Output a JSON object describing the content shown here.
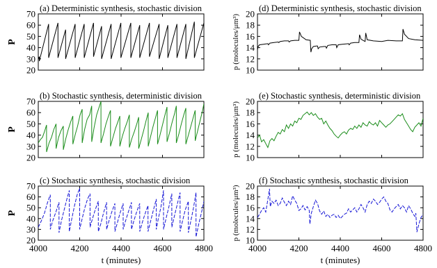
{
  "chart_data": [
    {
      "panel": "a",
      "type": "line",
      "title": "(a) Deterministic synthesis, stochastic division",
      "ylabel": "P",
      "xlim": [
        4000,
        4800
      ],
      "ylim": [
        20,
        70
      ],
      "yticks": [
        20,
        30,
        40,
        50,
        60,
        70
      ],
      "xticks": [
        4000,
        4200,
        4400,
        4600,
        4800
      ],
      "show_xtick_labels": false,
      "series": [
        {
          "color": "#000000",
          "dash": "solid",
          "x": [
            4000,
            4005,
            4005,
            4050,
            4050,
            4095,
            4095,
            4132,
            4132,
            4178,
            4178,
            4222,
            4222,
            4267,
            4267,
            4306,
            4306,
            4352,
            4352,
            4399,
            4399,
            4447,
            4447,
            4490,
            4490,
            4537,
            4537,
            4584,
            4584,
            4626,
            4626,
            4670,
            4670,
            4713,
            4713,
            4754,
            4754,
            4800
          ],
          "y": [
            30,
            32,
            28,
            61,
            31,
            62,
            31,
            56,
            30,
            61,
            31,
            61,
            31,
            62,
            32,
            59,
            30,
            61,
            30,
            62,
            31,
            62,
            31,
            60,
            31,
            62,
            32,
            61,
            30,
            60,
            31,
            61,
            31,
            61,
            30,
            63,
            31,
            62
          ]
        }
      ]
    },
    {
      "panel": "b",
      "type": "line",
      "title": "(b) Stochastic synthesis, deterministic division",
      "ylabel": "P",
      "xlim": [
        4000,
        4800
      ],
      "ylim": [
        20,
        70
      ],
      "yticks": [
        20,
        30,
        40,
        50,
        60,
        70
      ],
      "xticks": [
        4000,
        4200,
        4400,
        4600,
        4800
      ],
      "show_xtick_labels": false,
      "series": [
        {
          "color": "#1a8c1a",
          "dash": "solid",
          "x": [
            4000,
            4010,
            4020,
            4030,
            4040,
            4040,
            4052,
            4064,
            4075,
            4086,
            4086,
            4098,
            4110,
            4121,
            4121,
            4133,
            4145,
            4157,
            4167,
            4167,
            4179,
            4190,
            4202,
            4212,
            4212,
            4224,
            4236,
            4248,
            4258,
            4258,
            4270,
            4282,
            4294,
            4303,
            4303,
            4315,
            4327,
            4339,
            4349,
            4349,
            4361,
            4373,
            4385,
            4394,
            4394,
            4406,
            4418,
            4430,
            4440,
            4440,
            4452,
            4464,
            4476,
            4485,
            4485,
            4497,
            4509,
            4521,
            4531,
            4531,
            4543,
            4555,
            4567,
            4576,
            4576,
            4588,
            4600,
            4612,
            4622,
            4622,
            4634,
            4646,
            4658,
            4667,
            4667,
            4679,
            4691,
            4703,
            4713,
            4713,
            4725,
            4737,
            4749,
            4758,
            4758,
            4770,
            4782,
            4794,
            4800
          ],
          "y": [
            33,
            36,
            38,
            43,
            49,
            25,
            33,
            38,
            45,
            50,
            28,
            38,
            44,
            48,
            27,
            37,
            45,
            52,
            57,
            32,
            41,
            48,
            58,
            63,
            33,
            45,
            54,
            58,
            66,
            34,
            47,
            58,
            65,
            70,
            33,
            41,
            50,
            57,
            62,
            30,
            38,
            46,
            52,
            57,
            30,
            39,
            46,
            52,
            58,
            29,
            37,
            43,
            50,
            56,
            28,
            36,
            44,
            53,
            60,
            30,
            39,
            48,
            56,
            62,
            32,
            40,
            49,
            58,
            65,
            34,
            42,
            51,
            59,
            66,
            33,
            41,
            50,
            58,
            64,
            32,
            40,
            48,
            56,
            62,
            35,
            44,
            53,
            62,
            68
          ]
        }
      ]
    },
    {
      "panel": "c",
      "type": "line",
      "title": "(c) Stochastic synthesis, stochastic division",
      "ylabel": "P",
      "xlabel": "t (minutes)",
      "xlim": [
        4000,
        4800
      ],
      "ylim": [
        20,
        70
      ],
      "yticks": [
        20,
        30,
        40,
        50,
        60,
        70
      ],
      "xticks": [
        4000,
        4200,
        4400,
        4600,
        4800
      ],
      "show_xtick_labels": true,
      "series": [
        {
          "color": "#1515d6",
          "dash": "dashed",
          "x": [
            4000,
            4015,
            4030,
            4045,
            4058,
            4058,
            4070,
            4085,
            4100,
            4100,
            4112,
            4125,
            4138,
            4150,
            4150,
            4162,
            4175,
            4188,
            4200,
            4200,
            4212,
            4225,
            4238,
            4250,
            4250,
            4262,
            4275,
            4290,
            4290,
            4302,
            4315,
            4330,
            4330,
            4342,
            4355,
            4370,
            4370,
            4382,
            4395,
            4410,
            4410,
            4422,
            4435,
            4450,
            4450,
            4462,
            4475,
            4490,
            4490,
            4502,
            4515,
            4530,
            4530,
            4542,
            4555,
            4570,
            4570,
            4580,
            4592,
            4605,
            4605,
            4617,
            4630,
            4645,
            4645,
            4657,
            4670,
            4685,
            4685,
            4697,
            4710,
            4725,
            4725,
            4737,
            4750,
            4762,
            4762,
            4775,
            4788,
            4800
          ],
          "y": [
            32,
            38,
            45,
            55,
            62,
            30,
            38,
            46,
            55,
            27,
            38,
            48,
            58,
            66,
            28,
            40,
            52,
            62,
            68,
            30,
            40,
            50,
            58,
            63,
            32,
            40,
            48,
            56,
            28,
            35,
            45,
            55,
            30,
            38,
            46,
            54,
            28,
            36,
            45,
            54,
            30,
            38,
            46,
            55,
            30,
            38,
            46,
            54,
            28,
            36,
            44,
            52,
            28,
            37,
            47,
            58,
            30,
            40,
            50,
            66,
            30,
            40,
            50,
            63,
            32,
            42,
            52,
            64,
            28,
            38,
            48,
            56,
            27,
            38,
            50,
            64,
            23,
            35,
            45,
            56
          ]
        }
      ]
    },
    {
      "panel": "d",
      "type": "line",
      "title": "(d) Deterministic synthesis, stochastic division",
      "ylabel": "p (molecules/μm³)",
      "xlim": [
        4000,
        4800
      ],
      "ylim": [
        10,
        20
      ],
      "yticks": [
        10,
        12,
        14,
        16,
        18,
        20
      ],
      "xticks": [
        4000,
        4200,
        4400,
        4600,
        4800
      ],
      "show_xtick_labels": false,
      "series": [
        {
          "color": "#000000",
          "dash": "solid",
          "x": [
            4000,
            4003,
            4010,
            4030,
            4050,
            4053,
            4060,
            4080,
            4100,
            4103,
            4110,
            4130,
            4150,
            4153,
            4160,
            4180,
            4200,
            4203,
            4212,
            4235,
            4255,
            4258,
            4262,
            4270,
            4285,
            4290,
            4293,
            4300,
            4320,
            4330,
            4333,
            4340,
            4360,
            4380,
            4383,
            4390,
            4410,
            4440,
            4443,
            4450,
            4470,
            4490,
            4493,
            4500,
            4515,
            4520,
            4523,
            4530,
            4560,
            4600,
            4630,
            4670,
            4700,
            4703,
            4710,
            4730,
            4760,
            4800
          ],
          "y": [
            13.6,
            14.2,
            14.5,
            14.6,
            14.7,
            14.5,
            14.8,
            14.9,
            15.0,
            14.9,
            15.1,
            15.2,
            15.2,
            15.0,
            15.2,
            15.3,
            15.3,
            16.8,
            16.0,
            15.4,
            15.3,
            13.2,
            13.8,
            14.2,
            14.3,
            14.3,
            13.8,
            14.1,
            14.2,
            14.2,
            13.9,
            14.4,
            14.5,
            14.5,
            14.0,
            14.5,
            14.6,
            14.7,
            14.5,
            14.8,
            14.9,
            14.9,
            16.3,
            15.5,
            15.2,
            15.1,
            16.6,
            15.4,
            15.2,
            15.1,
            15.3,
            15.2,
            15.2,
            17.3,
            16.4,
            15.6,
            15.4,
            15.3
          ]
        }
      ]
    },
    {
      "panel": "e",
      "type": "line",
      "title": "(e) Stochastic synthesis, deterministic division",
      "ylabel": "p (molecules/μm³)",
      "xlim": [
        4000,
        4800
      ],
      "ylim": [
        10,
        20
      ],
      "yticks": [
        10,
        12,
        14,
        16,
        18,
        20
      ],
      "xticks": [
        4000,
        4200,
        4400,
        4600,
        4800
      ],
      "show_xtick_labels": false,
      "series": [
        {
          "color": "#1a8c1a",
          "dash": "solid",
          "x": [
            4000,
            4010,
            4020,
            4030,
            4040,
            4050,
            4060,
            4070,
            4080,
            4090,
            4100,
            4110,
            4120,
            4130,
            4140,
            4150,
            4160,
            4170,
            4180,
            4190,
            4200,
            4210,
            4220,
            4230,
            4240,
            4250,
            4260,
            4270,
            4280,
            4290,
            4300,
            4310,
            4320,
            4330,
            4340,
            4350,
            4360,
            4370,
            4380,
            4390,
            4400,
            4410,
            4420,
            4430,
            4440,
            4450,
            4460,
            4470,
            4480,
            4490,
            4500,
            4510,
            4520,
            4530,
            4540,
            4550,
            4560,
            4570,
            4580,
            4590,
            4600,
            4610,
            4620,
            4630,
            4640,
            4650,
            4660,
            4670,
            4680,
            4690,
            4700,
            4710,
            4720,
            4730,
            4740,
            4750,
            4760,
            4770,
            4780,
            4790,
            4800
          ],
          "y": [
            13.5,
            14.0,
            12.8,
            13.2,
            12.5,
            11.8,
            13.0,
            13.4,
            13.0,
            13.8,
            14.5,
            14.2,
            15.0,
            14.6,
            15.8,
            15.2,
            16.0,
            15.6,
            16.5,
            16.2,
            17.0,
            16.8,
            17.5,
            17.8,
            18.1,
            17.6,
            18.0,
            17.5,
            17.8,
            17.2,
            16.8,
            17.0,
            16.0,
            16.5,
            15.8,
            15.2,
            14.8,
            14.2,
            13.8,
            13.5,
            14.0,
            14.4,
            14.6,
            14.2,
            14.9,
            15.2,
            15.0,
            15.6,
            15.2,
            15.8,
            15.4,
            16.2,
            15.8,
            15.6,
            16.4,
            16.0,
            15.8,
            16.2,
            15.6,
            16.6,
            16.2,
            15.8,
            15.4,
            15.8,
            16.0,
            16.4,
            16.8,
            17.2,
            17.6,
            17.4,
            17.8,
            16.8,
            16.2,
            15.6,
            15.0,
            14.6,
            15.4,
            15.8,
            16.2,
            15.6,
            17.0
          ]
        }
      ]
    },
    {
      "panel": "f",
      "type": "line",
      "title": "(f) Stochastic synthesis, stochastic division",
      "ylabel": "p (molecules/μm³)",
      "xlabel": "t (minutes)",
      "xlim": [
        4000,
        4800
      ],
      "ylim": [
        10,
        20
      ],
      "yticks": [
        10,
        12,
        14,
        16,
        18,
        20
      ],
      "xticks": [
        4000,
        4200,
        4400,
        4600,
        4800
      ],
      "show_xtick_labels": true,
      "series": [
        {
          "color": "#1515d6",
          "dash": "dashed",
          "x": [
            4000,
            4010,
            4020,
            4030,
            4040,
            4050,
            4058,
            4062,
            4070,
            4080,
            4090,
            4100,
            4110,
            4120,
            4130,
            4140,
            4150,
            4160,
            4170,
            4180,
            4190,
            4200,
            4210,
            4220,
            4230,
            4240,
            4250,
            4253,
            4260,
            4270,
            4280,
            4290,
            4300,
            4310,
            4320,
            4330,
            4340,
            4350,
            4360,
            4370,
            4380,
            4390,
            4400,
            4410,
            4420,
            4430,
            4440,
            4450,
            4460,
            4470,
            4480,
            4490,
            4500,
            4510,
            4520,
            4530,
            4540,
            4550,
            4560,
            4570,
            4580,
            4590,
            4600,
            4610,
            4620,
            4630,
            4640,
            4650,
            4660,
            4670,
            4680,
            4690,
            4700,
            4710,
            4720,
            4730,
            4740,
            4750,
            4760,
            4765,
            4770,
            4780,
            4790,
            4800
          ],
          "y": [
            14.2,
            14.8,
            15.5,
            16.0,
            15.2,
            17.5,
            19.5,
            16.2,
            17.2,
            16.8,
            17.4,
            16.4,
            16.8,
            17.8,
            17.0,
            16.4,
            17.2,
            16.6,
            18.2,
            17.4,
            16.8,
            15.5,
            15.8,
            16.4,
            15.6,
            16.2,
            15.5,
            13.0,
            15.0,
            16.2,
            17.4,
            16.8,
            15.4,
            14.8,
            15.4,
            14.4,
            14.8,
            14.2,
            14.6,
            14.8,
            14.2,
            14.6,
            14.0,
            14.4,
            14.8,
            15.0,
            15.8,
            15.2,
            15.6,
            16.0,
            15.2,
            15.8,
            16.6,
            16.0,
            15.2,
            16.6,
            17.2,
            16.8,
            17.6,
            17.2,
            16.6,
            17.0,
            17.6,
            18.0,
            17.2,
            16.8,
            15.6,
            15.2,
            15.8,
            16.2,
            16.6,
            15.8,
            16.4,
            16.0,
            15.2,
            16.4,
            15.8,
            15.0,
            14.4,
            15.0,
            11.5,
            13.0,
            14.2,
            14.8
          ]
        }
      ]
    }
  ]
}
